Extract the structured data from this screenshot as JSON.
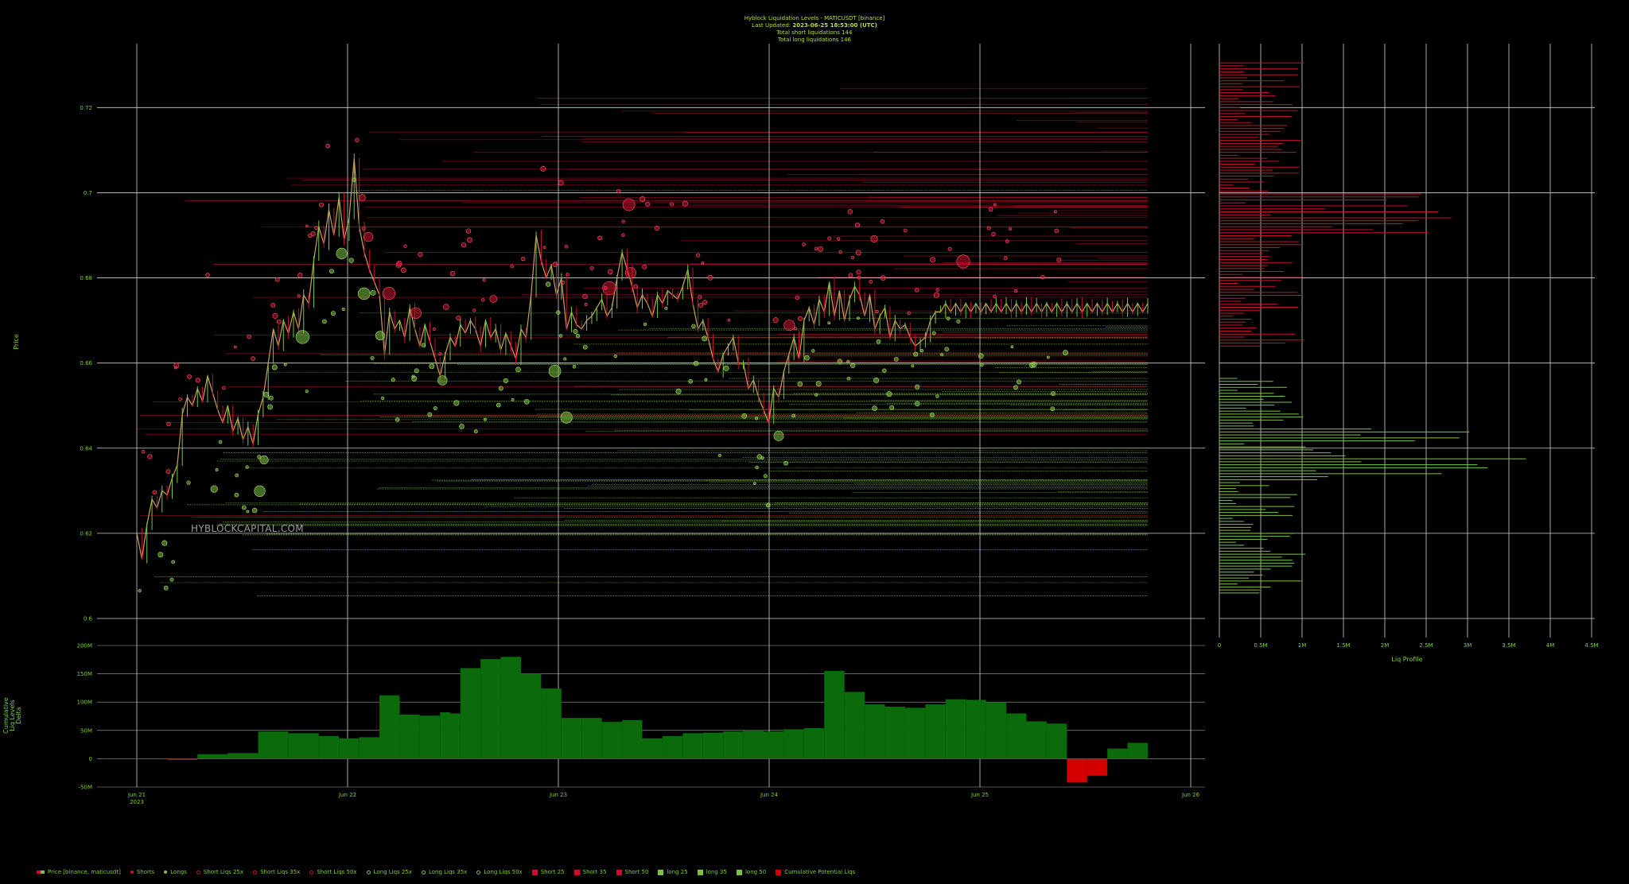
{
  "header": {
    "title": "Hyblock Liquidation Levels - MATICUSDT [binance]",
    "updated_prefix": "Last Updated: ",
    "updated_value": "2023-06-25 18:53:00 (UTC)",
    "short_total": "Total short liquidations 144",
    "long_total": "Total long liquidations 146"
  },
  "watermark": "HYBLOCKCAPITAL.COM",
  "colors": {
    "short": "#c8102e",
    "long": "#7cc242",
    "delta_pos": "#0a6b0a",
    "delta_neg": "#d40000",
    "grid": "#d0d0d0",
    "text": "#7bd12e"
  },
  "chart_data": [
    {
      "type": "line",
      "name": "price_panel",
      "ylabel": "Price",
      "ylim": [
        0.6,
        0.735
      ],
      "y_ticks": [
        "0.72",
        "0.7",
        "0.68",
        "0.66",
        "0.64",
        "0.62",
        "0.6"
      ],
      "y_tick_values": [
        0.72,
        0.7,
        0.68,
        0.66,
        0.64,
        0.62,
        0.6
      ],
      "grid": true,
      "price_series": {
        "x": [
          0.0,
          0.05,
          0.1,
          0.15,
          0.2,
          0.25,
          0.3,
          0.35,
          0.4,
          0.45,
          0.5,
          0.55,
          0.6,
          0.65,
          0.7,
          0.75,
          0.8,
          0.85,
          0.9,
          0.95,
          1.0,
          1.05,
          1.1,
          1.15,
          1.2,
          1.25,
          1.3,
          1.35,
          1.4,
          1.45,
          1.5,
          1.55,
          1.6,
          1.65,
          1.7,
          1.75,
          1.8,
          1.85,
          1.9,
          1.95,
          2.0,
          2.05,
          2.1,
          2.15,
          2.2,
          2.25,
          2.3,
          2.35,
          2.4,
          2.45,
          2.5,
          2.55,
          2.6,
          2.65,
          2.7,
          2.75,
          2.8,
          2.85,
          2.9,
          2.95,
          3.0,
          3.05,
          3.1,
          3.15,
          3.2,
          3.25,
          3.3,
          3.35,
          3.4,
          3.45,
          3.5,
          3.55,
          3.6,
          3.65,
          3.7,
          3.75,
          3.8,
          3.85,
          3.9,
          3.95,
          4.0,
          4.05,
          4.1,
          4.15,
          4.2,
          4.25,
          4.3,
          4.35,
          4.4,
          4.45,
          4.5,
          4.55,
          4.6,
          4.65,
          4.7,
          4.75,
          4.8,
          4.85,
          4.9,
          4.95,
          5.0,
          5.05,
          5.1,
          5.15,
          5.2,
          5.25,
          5.3,
          5.35,
          5.4,
          5.45,
          5.5,
          5.55,
          5.6,
          5.65,
          5.7,
          5.75,
          5.8,
          5.85,
          5.9,
          5.95,
          6.0,
          6.05,
          6.1,
          6.15,
          6.2,
          6.25,
          6.3,
          6.35,
          6.4,
          6.45,
          6.5,
          6.55,
          6.6,
          6.65,
          6.7,
          6.75,
          6.8,
          6.85,
          6.9,
          6.95,
          7.0,
          7.05,
          7.1,
          7.15,
          7.2,
          7.25,
          7.3,
          7.35,
          7.4,
          7.45,
          7.5,
          7.55,
          7.6,
          7.65,
          7.7,
          7.75,
          7.8,
          7.85,
          7.9,
          7.95,
          8.0,
          8.05,
          8.1,
          8.15,
          8.2,
          8.25,
          8.3,
          8.35,
          8.4,
          8.45,
          8.5,
          8.55,
          8.6,
          8.65,
          8.7,
          8.75,
          8.8,
          8.85,
          8.9,
          8.95,
          9.0,
          9.05,
          9.1,
          9.15,
          9.2,
          9.25,
          9.3,
          9.35,
          9.4,
          9.45,
          9.5,
          9.55,
          9.6,
          9.65,
          9.7,
          9.75,
          9.8,
          9.85,
          9.9,
          9.95,
          10.0
        ],
        "y": [
          0.62,
          0.614,
          0.622,
          0.628,
          0.626,
          0.63,
          0.629,
          0.633,
          0.636,
          0.648,
          0.652,
          0.65,
          0.654,
          0.651,
          0.657,
          0.653,
          0.649,
          0.646,
          0.65,
          0.644,
          0.647,
          0.642,
          0.645,
          0.641,
          0.648,
          0.652,
          0.66,
          0.668,
          0.664,
          0.67,
          0.667,
          0.672,
          0.668,
          0.676,
          0.674,
          0.684,
          0.692,
          0.688,
          0.696,
          0.69,
          0.699,
          0.689,
          0.694,
          0.708,
          0.692,
          0.686,
          0.682,
          0.679,
          0.676,
          0.662,
          0.672,
          0.668,
          0.67,
          0.666,
          0.673,
          0.668,
          0.664,
          0.669,
          0.665,
          0.661,
          0.657,
          0.662,
          0.666,
          0.664,
          0.669,
          0.667,
          0.67,
          0.668,
          0.664,
          0.67,
          0.666,
          0.668,
          0.663,
          0.667,
          0.664,
          0.661,
          0.668,
          0.666,
          0.676,
          0.69,
          0.684,
          0.68,
          0.683,
          0.676,
          0.68,
          0.668,
          0.672,
          0.669,
          0.668,
          0.67,
          0.671,
          0.673,
          0.675,
          0.671,
          0.673,
          0.68,
          0.686,
          0.682,
          0.678,
          0.673,
          0.676,
          0.674,
          0.671,
          0.676,
          0.674,
          0.677,
          0.676,
          0.675,
          0.678,
          0.682,
          0.674,
          0.668,
          0.67,
          0.666,
          0.661,
          0.658,
          0.662,
          0.664,
          0.666,
          0.66,
          0.66,
          0.654,
          0.656,
          0.652,
          0.649,
          0.646,
          0.654,
          0.652,
          0.658,
          0.662,
          0.666,
          0.661,
          0.67,
          0.673,
          0.669,
          0.675,
          0.672,
          0.679,
          0.671,
          0.677,
          0.67,
          0.675,
          0.678,
          0.676,
          0.671,
          0.676,
          0.668,
          0.671,
          0.673,
          0.666,
          0.67,
          0.668,
          0.669,
          0.666,
          0.664,
          0.665,
          0.666,
          0.67,
          0.672,
          0.672,
          0.674,
          0.672,
          0.674,
          0.672,
          0.674,
          0.672,
          0.674,
          0.672,
          0.674,
          0.672,
          0.674,
          0.672,
          0.674,
          0.672,
          0.674,
          0.672,
          0.674,
          0.672,
          0.674,
          0.672,
          0.674,
          0.672,
          0.674,
          0.672,
          0.674,
          0.672,
          0.674,
          0.672,
          0.674,
          0.672,
          0.674,
          0.672,
          0.674,
          0.672,
          0.674,
          0.672,
          0.674,
          0.672,
          0.674,
          0.672,
          0.674
        ]
      }
    },
    {
      "type": "area",
      "name": "cumulative_delta_panel",
      "ylabel": "Cumulative Liq Levels Delta",
      "ylim": [
        -50,
        200
      ],
      "y_ticks": [
        "200M",
        "150M",
        "100M",
        "50M",
        "0",
        "-50M"
      ],
      "y_tick_values": [
        200,
        150,
        100,
        50,
        0,
        -50
      ],
      "x_ticks": [
        "Jun 21",
        "Jun 22",
        "Jun 23",
        "Jun 24",
        "Jun 25",
        "Jun 26"
      ],
      "x_tick_sub": "2023",
      "series": [
        {
          "name": "Cumulative Potential Liqs",
          "x": [
            0.0,
            0.3,
            0.6,
            0.9,
            1.2,
            1.5,
            1.8,
            2.0,
            2.2,
            2.4,
            2.6,
            2.8,
            3.0,
            3.1,
            3.2,
            3.4,
            3.6,
            3.8,
            4.0,
            4.2,
            4.4,
            4.6,
            4.8,
            5.0,
            5.2,
            5.4,
            5.6,
            5.8,
            6.0,
            6.2,
            6.4,
            6.6,
            6.8,
            7.0,
            7.2,
            7.4,
            7.6,
            7.8,
            8.0,
            8.2,
            8.4,
            8.6,
            8.8,
            9.0,
            9.2,
            9.4,
            9.6,
            9.8,
            10.0
          ],
          "values": [
            0,
            -2,
            8,
            10,
            48,
            45,
            40,
            36,
            38,
            112,
            78,
            76,
            82,
            80,
            160,
            176,
            180,
            150,
            124,
            72,
            72,
            65,
            68,
            36,
            40,
            45,
            46,
            48,
            50,
            48,
            52,
            54,
            155,
            118,
            96,
            92,
            90,
            96,
            105,
            104,
            100,
            80,
            66,
            62,
            -42,
            -30,
            18,
            28,
            20
          ]
        }
      ]
    },
    {
      "type": "bar",
      "name": "liq_profile",
      "xlabel": "Liq Profile",
      "x_ticks": [
        "0",
        "0.5M",
        "1M",
        "1.5M",
        "2M",
        "2.5M",
        "3M",
        "3.5M",
        "4M",
        "4.5M"
      ],
      "x_tick_values": [
        0,
        0.5,
        1,
        1.5,
        2,
        2.5,
        3,
        3.5,
        4,
        4.5
      ],
      "short_profile_range": [
        0.664,
        0.731
      ],
      "long_profile_range": [
        0.606,
        0.657
      ]
    }
  ],
  "legend": [
    {
      "label": "Price [binance, maticusdt]",
      "kind": "candle",
      "color": "#c8102e"
    },
    {
      "label": "Shorts",
      "kind": "dot",
      "color": "#c8102e"
    },
    {
      "label": "Longs",
      "kind": "dot",
      "color": "#7cc242"
    },
    {
      "label": "Short Liqs 25x",
      "kind": "ring",
      "color": "#c8102e"
    },
    {
      "label": "Short Liqs 35x",
      "kind": "ring",
      "color": "#c8102e"
    },
    {
      "label": "Short Liqs 50x",
      "kind": "ring",
      "color": "#c8102e"
    },
    {
      "label": "Long Liqs 25x",
      "kind": "ring",
      "color": "#7cc242"
    },
    {
      "label": "Long Liqs 35x",
      "kind": "ring",
      "color": "#7cc242"
    },
    {
      "label": "Long Liqs 50x",
      "kind": "ring",
      "color": "#7cc242"
    },
    {
      "label": "Short 25",
      "kind": "square",
      "color": "#c8102e"
    },
    {
      "label": "Short 35",
      "kind": "square",
      "color": "#c8102e"
    },
    {
      "label": "Short 50",
      "kind": "square",
      "color": "#c8102e"
    },
    {
      "label": "long 25",
      "kind": "square",
      "color": "#7cc242"
    },
    {
      "label": "long 35",
      "kind": "square",
      "color": "#7cc242"
    },
    {
      "label": "long 50",
      "kind": "square",
      "color": "#7cc242"
    },
    {
      "label": "Cumulative Potential Liqs",
      "kind": "square",
      "color": "#d40000"
    }
  ]
}
